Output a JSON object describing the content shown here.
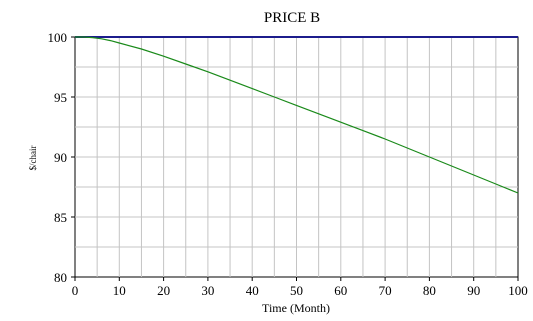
{
  "chart_data": {
    "type": "line",
    "title": "PRICE B",
    "xlabel": "Time (Month)",
    "ylabel": "$/chair",
    "xlim": [
      0,
      100
    ],
    "ylim": [
      80,
      100
    ],
    "x_ticks": [
      0,
      10,
      20,
      30,
      40,
      50,
      60,
      70,
      80,
      90,
      100
    ],
    "y_ticks": [
      80,
      85,
      90,
      95,
      100
    ],
    "grid": true,
    "series": [
      {
        "color": "#1a8a1a",
        "x": [
          0,
          2,
          4,
          6,
          8,
          10,
          15,
          20,
          25,
          30,
          35,
          40,
          45,
          50,
          55,
          60,
          65,
          70,
          75,
          80,
          85,
          90,
          95,
          100
        ],
        "y": [
          100.0,
          100.0,
          99.95,
          99.85,
          99.7,
          99.5,
          99.0,
          98.4,
          97.75,
          97.1,
          96.4,
          95.7,
          95.0,
          94.3,
          93.6,
          92.9,
          92.2,
          91.5,
          90.75,
          90.0,
          89.25,
          88.5,
          87.75,
          87.0
        ]
      }
    ],
    "reference_line": {
      "y": 100,
      "color": "#1c1c8c"
    }
  }
}
